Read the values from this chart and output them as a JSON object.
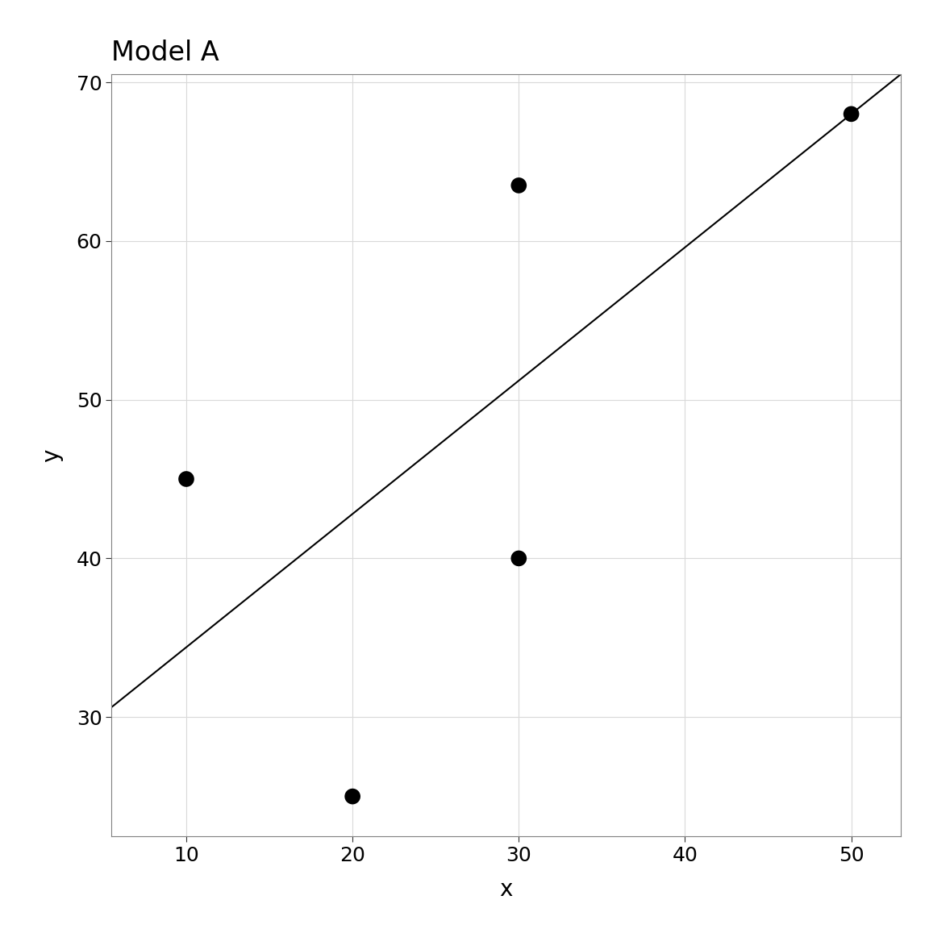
{
  "title": "Model A",
  "xlabel": "x",
  "ylabel": "y",
  "scatter_x": [
    10,
    20,
    30,
    30,
    50
  ],
  "scatter_y": [
    45,
    25,
    63.5,
    40,
    68
  ],
  "scatter_color": "#000000",
  "scatter_size": 200,
  "line_intercept": 26.0,
  "line_slope": 0.84,
  "line_color": "#000000",
  "line_width": 1.5,
  "xlim": [
    5.5,
    53
  ],
  "ylim": [
    22.5,
    70.5
  ],
  "xticks": [
    10,
    20,
    30,
    40,
    50
  ],
  "yticks": [
    30,
    40,
    50,
    60,
    70
  ],
  "grid_color": "#d9d9d9",
  "panel_border_color": "#808080",
  "bg_color": "#ffffff",
  "title_fontsize": 24,
  "label_fontsize": 20,
  "tick_fontsize": 18
}
